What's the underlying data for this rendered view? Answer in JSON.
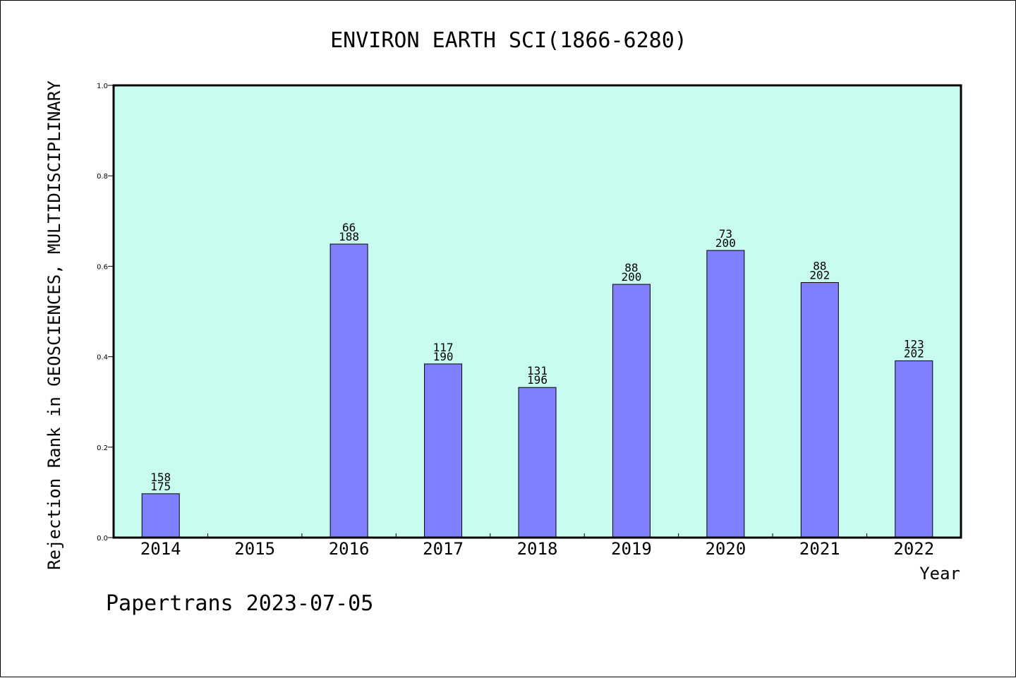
{
  "chart_data": {
    "type": "bar",
    "title": "ENVIRON EARTH SCI(1866-6280)",
    "xlabel": "Year",
    "ylabel": "Rejection Rank in GEOSCIENCES, MULTIDISCIPLINARY",
    "ylim": [
      0,
      1
    ],
    "yticks": [
      "0.0",
      "0.2",
      "0.4",
      "0.6",
      "0.8",
      "1.0"
    ],
    "categories": [
      "2014",
      "2015",
      "2016",
      "2017",
      "2018",
      "2019",
      "2020",
      "2021",
      "2022"
    ],
    "values": [
      0.097,
      null,
      0.649,
      0.384,
      0.332,
      0.56,
      0.635,
      0.564,
      0.391
    ],
    "labels": [
      [
        "158",
        "175"
      ],
      null,
      [
        "66",
        "188"
      ],
      [
        "117",
        "190"
      ],
      [
        "131",
        "196"
      ],
      [
        "88",
        "200"
      ],
      [
        "73",
        "200"
      ],
      [
        "88",
        "202"
      ],
      [
        "123",
        "202"
      ]
    ],
    "grid": false,
    "colors": {
      "background": "#c8fcf0",
      "bar": "#8080ff",
      "bar_edge": "#000000"
    }
  },
  "footer": "Papertrans 2023-07-05"
}
